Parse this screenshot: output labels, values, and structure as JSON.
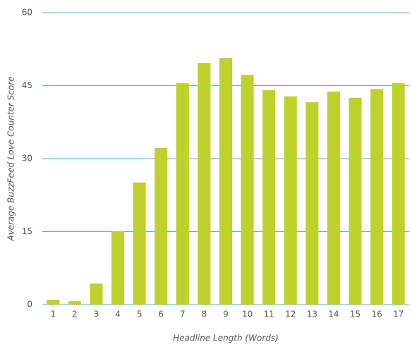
{
  "chart_data": {
    "type": "bar",
    "categories": [
      "1",
      "2",
      "3",
      "4",
      "5",
      "6",
      "7",
      "8",
      "9",
      "10",
      "11",
      "12",
      "13",
      "14",
      "15",
      "16",
      "17"
    ],
    "values": [
      1.0,
      0.7,
      4.3,
      15.1,
      25.1,
      32.2,
      45.5,
      49.7,
      50.7,
      47.2,
      44.1,
      42.8,
      41.6,
      43.8,
      42.5,
      44.3,
      45.5
    ],
    "color": "#bfd12b",
    "grid_color": "#4bb3d6",
    "xlabel": "Headline Length (Words)",
    "ylabel": "Average BuzzFeed Love Counter Score",
    "ylim": [
      0,
      60
    ],
    "yticks": [
      0,
      15,
      30,
      45,
      60
    ],
    "grid": true
  }
}
